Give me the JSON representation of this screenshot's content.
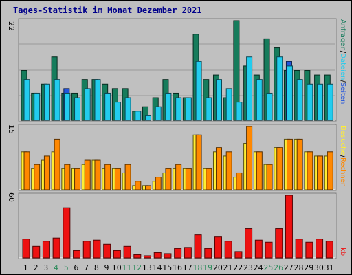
{
  "title": "Tages-Statistik im Monat Dezember 2021",
  "colors": {
    "background": "#c0c0c0",
    "anfragen": "#167c5c",
    "dateien": "#22ccee",
    "seiten": "#2255dd",
    "besuche": "#ffee33",
    "rechner": "#ff8800",
    "kb": "#ee1111",
    "weekend_label": "#2b8a5a"
  },
  "right_labels": {
    "top": [
      "Anfragen",
      "/",
      "Dateien",
      "/",
      "Seiten"
    ],
    "mid": [
      "Besuche",
      "/",
      "Rechner"
    ],
    "bottom": [
      "kb"
    ]
  },
  "chart_data": [
    {
      "type": "bar",
      "title": "Tages-Statistik im Monat Dezember 2021",
      "categories": [
        "1",
        "2",
        "3",
        "4",
        "5",
        "6",
        "7",
        "8",
        "9",
        "10",
        "11",
        "12",
        "13",
        "14",
        "15",
        "16",
        "17",
        "18",
        "19",
        "20",
        "21",
        "22",
        "23",
        "24",
        "25",
        "26",
        "27",
        "28",
        "29",
        "30",
        "31"
      ],
      "weekend_days": [
        "4",
        "5",
        "11",
        "12",
        "18",
        "19",
        "25",
        "26"
      ],
      "ylim": [
        0,
        22
      ],
      "ytick": "22",
      "series": [
        {
          "name": "Anfragen",
          "values": [
            11,
            6,
            8,
            14,
            6,
            6,
            9,
            9,
            8,
            7,
            7,
            2,
            3,
            5,
            9,
            6,
            5,
            19,
            9,
            10,
            5,
            22,
            12,
            10,
            18,
            16,
            11,
            11,
            11,
            10,
            10
          ]
        },
        {
          "name": "Dateien",
          "values": [
            9,
            6,
            8,
            9,
            6,
            5,
            7,
            9,
            6,
            4,
            5,
            2,
            1,
            3,
            6,
            5,
            5,
            13,
            5,
            9,
            7,
            4,
            14,
            9,
            6,
            14,
            12,
            9,
            8,
            8,
            8
          ]
        },
        {
          "name": "Seiten",
          "values": [
            0,
            0,
            0,
            0,
            7,
            0,
            0,
            0,
            0,
            0,
            0,
            0,
            0,
            0,
            0,
            0,
            0,
            0,
            0,
            0,
            0,
            0,
            0,
            0,
            0,
            0,
            13,
            0,
            0,
            0,
            0
          ]
        }
      ]
    },
    {
      "type": "bar",
      "ylim": [
        0,
        15
      ],
      "ytick": "15",
      "series": [
        {
          "name": "Besuche",
          "values": [
            9,
            5,
            7,
            9,
            5,
            5,
            6,
            7,
            5,
            5,
            4,
            1,
            1,
            2,
            4,
            5,
            5,
            13,
            5,
            9,
            8,
            3,
            11,
            9,
            6,
            10,
            12,
            12,
            9,
            8,
            8
          ]
        },
        {
          "name": "Rechner",
          "values": [
            9,
            6,
            8,
            12,
            6,
            5,
            7,
            7,
            6,
            5,
            6,
            2,
            1,
            3,
            5,
            6,
            5,
            13,
            5,
            10,
            9,
            4,
            15,
            9,
            6,
            10,
            12,
            12,
            9,
            8,
            9
          ]
        }
      ]
    },
    {
      "type": "bar",
      "ylim": [
        0,
        60
      ],
      "ytick": "60",
      "series": [
        {
          "name": "kb",
          "values": [
            18,
            11,
            16,
            19,
            48,
            7,
            16,
            17,
            13,
            7,
            11,
            3,
            2,
            5,
            4,
            9,
            10,
            22,
            9,
            20,
            16,
            6,
            28,
            17,
            15,
            28,
            60,
            18,
            15,
            18,
            16
          ]
        }
      ]
    }
  ]
}
